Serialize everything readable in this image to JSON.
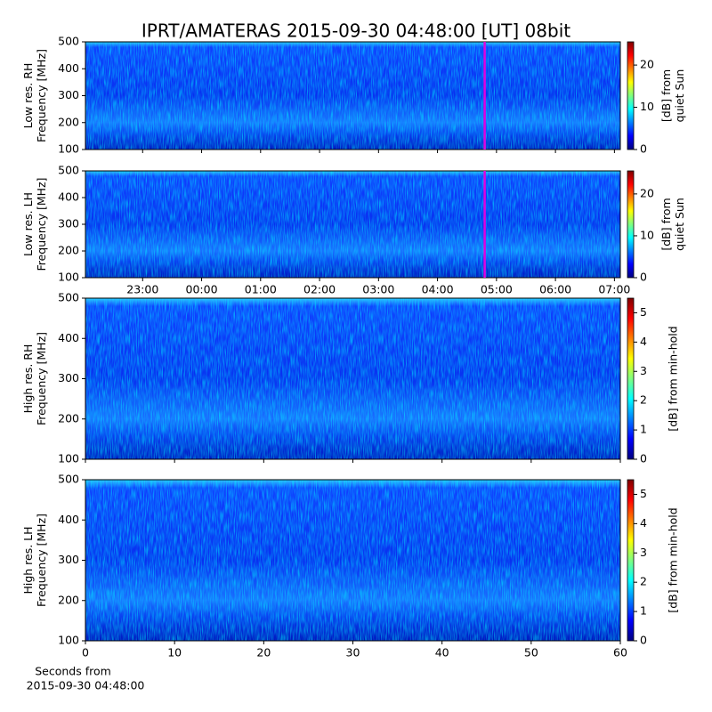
{
  "title": "IPRT/AMATERAS 2015-09-30 04:48:00 [UT]   08bit",
  "chart_data": [
    {
      "type": "spectrogram",
      "colormap": "jet",
      "ylabel": [
        "Low res. RH",
        "Frequency [MHz]"
      ],
      "ylim": [
        100,
        500
      ],
      "yticks": [
        100,
        200,
        300,
        400,
        500
      ],
      "xlim": [
        22.03,
        31.1
      ],
      "xticks": [
        23,
        24,
        25,
        26,
        27,
        28,
        29,
        30,
        31
      ],
      "marker": {
        "x": 28.8,
        "color": "#e000e0"
      },
      "colorbar": {
        "label": [
          "[dB] from",
          "quiet Sun"
        ],
        "lim": [
          0,
          25.5
        ],
        "ticks": [
          0,
          10,
          20
        ]
      }
    },
    {
      "type": "spectrogram",
      "colormap": "jet",
      "ylabel": [
        "Low res. LH",
        "Frequency [MHz]"
      ],
      "ylim": [
        100,
        500
      ],
      "yticks": [
        100,
        200,
        300,
        400,
        500
      ],
      "xlim": [
        22.03,
        31.1
      ],
      "xticks": [
        {
          "value": 23,
          "label": "23:00"
        },
        {
          "value": 24,
          "label": "00:00"
        },
        {
          "value": 25,
          "label": "01:00"
        },
        {
          "value": 26,
          "label": "02:00"
        },
        {
          "value": 27,
          "label": "03:00"
        },
        {
          "value": 28,
          "label": "04:00"
        },
        {
          "value": 29,
          "label": "05:00"
        },
        {
          "value": 30,
          "label": "06:00"
        },
        {
          "value": 31,
          "label": "07:00"
        }
      ],
      "marker": {
        "x": 28.8,
        "color": "#e000e0"
      },
      "colorbar": {
        "label": [
          "[dB] from",
          "quiet Sun"
        ],
        "lim": [
          0,
          25.5
        ],
        "ticks": [
          0,
          10,
          20
        ]
      }
    },
    {
      "type": "spectrogram",
      "colormap": "jet",
      "ylabel": [
        "High res. RH",
        "Frequency [MHz]"
      ],
      "ylim": [
        100,
        500
      ],
      "yticks": [
        100,
        200,
        300,
        400,
        500
      ],
      "xlim": [
        0,
        60
      ],
      "xticks": [
        0,
        10,
        20,
        30,
        40,
        50,
        60
      ],
      "colorbar": {
        "label": [
          "[dB] from min-hold"
        ],
        "lim": [
          0,
          5.5
        ],
        "ticks": [
          0,
          1,
          2,
          3,
          4,
          5
        ]
      }
    },
    {
      "type": "spectrogram",
      "colormap": "jet",
      "ylabel": [
        "High res. LH",
        "Frequency [MHz]"
      ],
      "ylim": [
        100,
        500
      ],
      "yticks": [
        100,
        200,
        300,
        400,
        500
      ],
      "xlim": [
        0,
        60
      ],
      "xticks": [
        {
          "value": 0,
          "label": "0"
        },
        {
          "value": 10,
          "label": "10"
        },
        {
          "value": 20,
          "label": "20"
        },
        {
          "value": 30,
          "label": "30"
        },
        {
          "value": 40,
          "label": "40"
        },
        {
          "value": 50,
          "label": "50"
        },
        {
          "value": 60,
          "label": "60"
        }
      ],
      "xlabel": [
        "Seconds from",
        "2015-09-30 04:48:00"
      ],
      "colorbar": {
        "label": [
          "[dB] from min-hold"
        ],
        "lim": [
          0,
          5.5
        ],
        "ticks": [
          0,
          1,
          2,
          3,
          4,
          5
        ]
      }
    }
  ]
}
